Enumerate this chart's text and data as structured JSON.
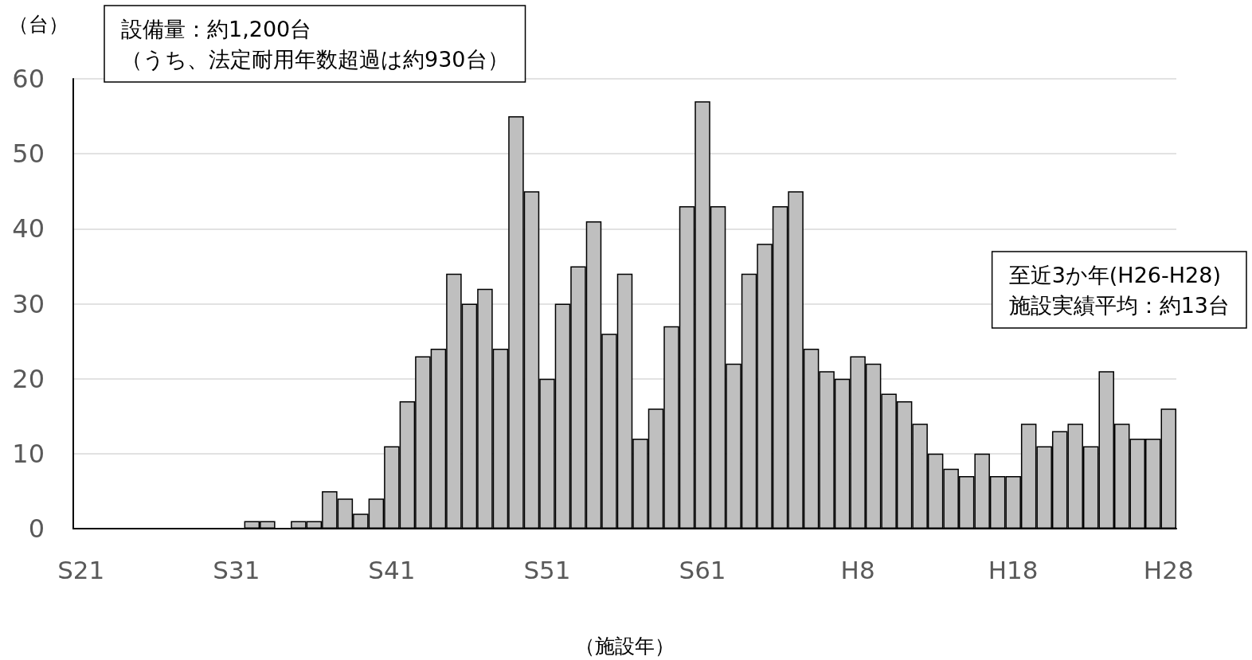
{
  "chart_data": {
    "type": "bar",
    "xlabel": "（施設年）",
    "ylabel": "（台）",
    "annotations": [
      "設備量：約1,200台",
      "（うち、法定耐用年数超過は約930台）",
      "至近3か年(H26-H28)",
      "施設実績平均：約13台"
    ],
    "categories": [
      "S21",
      null,
      null,
      null,
      null,
      null,
      null,
      null,
      null,
      null,
      "S31",
      null,
      null,
      null,
      null,
      null,
      null,
      null,
      null,
      null,
      "S41",
      null,
      null,
      null,
      null,
      null,
      null,
      null,
      null,
      null,
      "S51",
      null,
      null,
      null,
      null,
      null,
      null,
      null,
      null,
      null,
      "S61",
      null,
      null,
      null,
      null,
      null,
      null,
      null,
      null,
      null,
      "H8",
      null,
      null,
      null,
      null,
      null,
      null,
      null,
      null,
      null,
      "H18",
      null,
      null,
      null,
      null,
      null,
      null,
      null,
      null,
      null,
      "H28"
    ],
    "values": [
      0,
      0,
      0,
      0,
      0,
      0,
      0,
      0,
      0,
      0,
      0,
      1,
      1,
      0,
      1,
      1,
      5,
      4,
      2,
      4,
      11,
      17,
      23,
      24,
      34,
      30,
      32,
      24,
      55,
      45,
      20,
      30,
      35,
      41,
      26,
      34,
      12,
      16,
      27,
      43,
      57,
      43,
      22,
      34,
      38,
      43,
      45,
      24,
      21,
      20,
      23,
      22,
      18,
      17,
      14,
      10,
      8,
      7,
      10,
      7,
      7,
      14,
      11,
      13,
      14,
      11,
      21,
      14,
      12,
      12,
      16
    ],
    "color": "#bfbfbf",
    "ylim": [
      0,
      60
    ],
    "yticks": [
      0,
      10,
      20,
      30,
      40,
      50,
      60
    ],
    "grid": "y"
  }
}
